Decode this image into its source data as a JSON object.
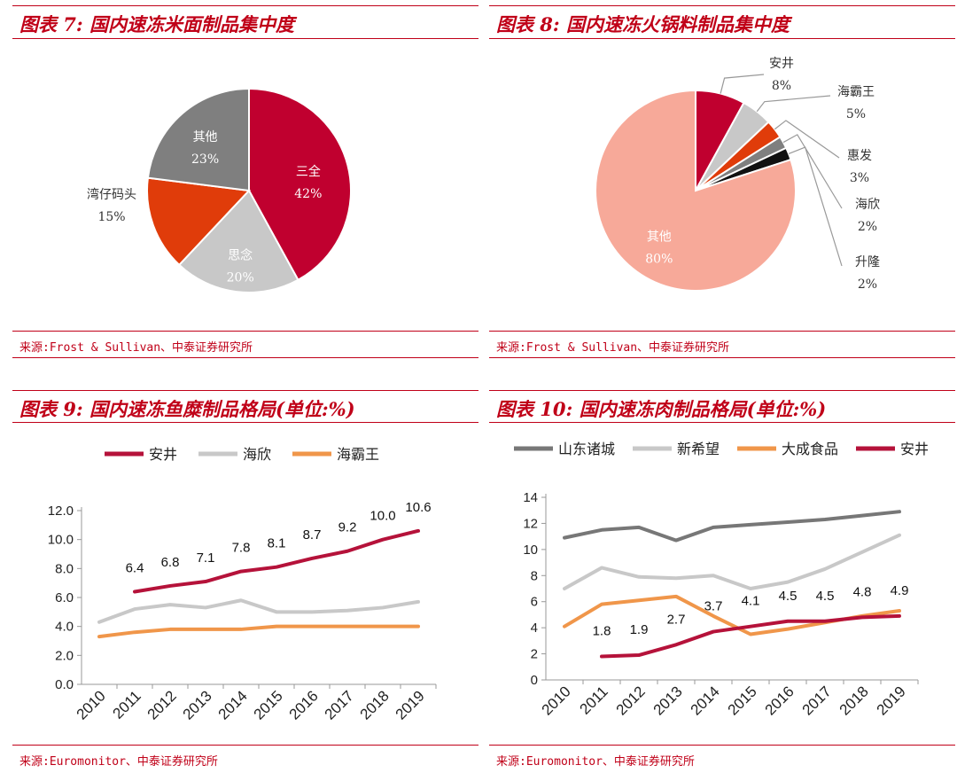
{
  "charts": [
    {
      "title": "图表 7:  国内速冻米面制品集中度",
      "source": "来源:Frost & Sullivan、中泰证券研究所"
    },
    {
      "title": "图表 8:  国内速冻火锅料制品集中度",
      "source": "来源:Frost & Sullivan、中泰证券研究所"
    },
    {
      "title": "图表 9:  国内速冻鱼糜制品格局(单位:%)",
      "source": "来源:Euromonitor、中泰证券研究所"
    },
    {
      "title": "图表 10:  国内速冻肉制品格局(单位:%)",
      "source": "来源:Euromonitor、中泰证券研究所"
    }
  ],
  "chart_data": [
    {
      "type": "pie",
      "title": "图表 7:  国内速冻米面制品集中度",
      "slices": [
        {
          "label": "三全",
          "value": 42,
          "value_label": "42%",
          "color": "#c0002f"
        },
        {
          "label": "思念",
          "value": 20,
          "value_label": "20%",
          "color": "#c8c8c8"
        },
        {
          "label": "湾仔码头",
          "value": 15,
          "value_label": "15%",
          "color": "#e03c0a"
        },
        {
          "label": "其他",
          "value": 23,
          "value_label": "23%",
          "color": "#7f7f7f"
        }
      ]
    },
    {
      "type": "pie",
      "title": "图表 8:  国内速冻火锅料制品集中度",
      "slices": [
        {
          "label": "安井",
          "value": 8,
          "value_label": "8%",
          "color": "#c0002f"
        },
        {
          "label": "海霸王",
          "value": 5,
          "value_label": "5%",
          "color": "#c8c8c8"
        },
        {
          "label": "惠发",
          "value": 3,
          "value_label": "3%",
          "color": "#e03c0a"
        },
        {
          "label": "海欣",
          "value": 2,
          "value_label": "2%",
          "color": "#7f7f7f"
        },
        {
          "label": "升隆",
          "value": 2,
          "value_label": "2%",
          "color": "#111111"
        },
        {
          "label": "其他",
          "value": 80,
          "value_label": "80%",
          "color": "#f7a999"
        }
      ]
    },
    {
      "type": "line",
      "title": "图表 9:  国内速冻鱼糜制品格局(单位:%)",
      "categories": [
        "2010",
        "2011",
        "2012",
        "2013",
        "2014",
        "2015",
        "2016",
        "2017",
        "2018",
        "2019"
      ],
      "ylim": [
        0,
        12
      ],
      "yticks": [
        "0.0",
        "2.0",
        "4.0",
        "6.0",
        "8.0",
        "10.0",
        "12.0"
      ],
      "yticks_values": [
        0,
        2,
        4,
        6,
        8,
        10,
        12
      ],
      "series": [
        {
          "name": "安井",
          "color": "#b5123a",
          "values": [
            null,
            6.4,
            6.8,
            7.1,
            7.8,
            8.1,
            8.7,
            9.2,
            10.0,
            10.6
          ],
          "labels": [
            null,
            "6.4",
            "6.8",
            "7.1",
            "7.8",
            "8.1",
            "8.7",
            "9.2",
            "10.0",
            "10.6"
          ]
        },
        {
          "name": "海欣",
          "color": "#c8c8c8",
          "values": [
            4.3,
            5.2,
            5.5,
            5.3,
            5.8,
            5.0,
            5.0,
            5.1,
            5.3,
            5.7
          ]
        },
        {
          "name": "海霸王",
          "color": "#f0964a",
          "values": [
            3.3,
            3.6,
            3.8,
            3.8,
            3.8,
            4.0,
            4.0,
            4.0,
            4.0,
            4.0
          ]
        }
      ]
    },
    {
      "type": "line",
      "title": "图表 10:  国内速冻肉制品格局(单位:%)",
      "categories": [
        "2010",
        "2011",
        "2012",
        "2013",
        "2014",
        "2015",
        "2016",
        "2017",
        "2018",
        "2019"
      ],
      "ylim": [
        0,
        14
      ],
      "yticks": [
        "0",
        "2",
        "4",
        "6",
        "8",
        "10",
        "12",
        "14"
      ],
      "yticks_values": [
        0,
        2,
        4,
        6,
        8,
        10,
        12,
        14
      ],
      "series": [
        {
          "name": "山东诸城",
          "color": "#777777",
          "values": [
            10.9,
            11.5,
            11.7,
            10.7,
            11.7,
            11.9,
            12.1,
            12.3,
            12.6,
            12.9
          ]
        },
        {
          "name": "新希望",
          "color": "#c8c8c8",
          "values": [
            7.0,
            8.6,
            7.9,
            7.8,
            8.0,
            7.0,
            7.5,
            8.5,
            9.8,
            11.1
          ]
        },
        {
          "name": "大成食品",
          "color": "#f0964a",
          "values": [
            4.1,
            5.8,
            6.1,
            6.4,
            4.9,
            3.5,
            3.9,
            4.4,
            4.9,
            5.3
          ]
        },
        {
          "name": "安井",
          "color": "#b5123a",
          "values": [
            null,
            1.8,
            1.9,
            2.7,
            3.7,
            4.1,
            4.5,
            4.5,
            4.8,
            4.9
          ],
          "labels": [
            null,
            "1.8",
            "1.9",
            "2.7",
            "3.7",
            "4.1",
            "4.5",
            "4.5",
            "4.8",
            "4.9"
          ]
        }
      ]
    }
  ]
}
